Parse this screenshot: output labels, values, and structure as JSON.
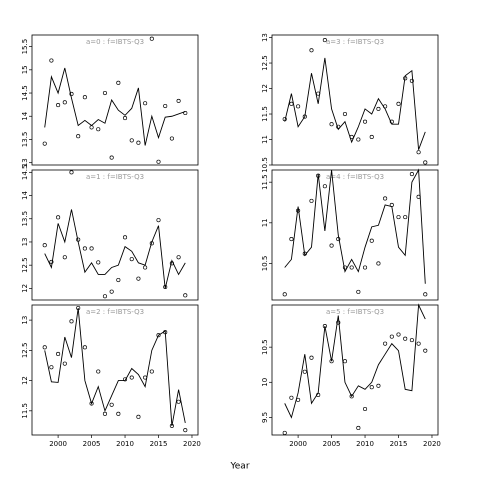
{
  "xlabel": "Year",
  "chart_data": [
    {
      "type": "line",
      "title": "a=0 : f=IBTS-Q3",
      "x": [
        1998,
        1999,
        2000,
        2001,
        2002,
        2003,
        2004,
        2005,
        2006,
        2007,
        2008,
        2009,
        2010,
        2011,
        2012,
        2013,
        2014,
        2015,
        2016,
        2017,
        2018,
        2019
      ],
      "series": [
        {
          "marker": "circle",
          "color": "#000000",
          "values": [
            13.41,
            15.2,
            14.24,
            14.3,
            14.48,
            13.57,
            14.41,
            13.76,
            13.72,
            14.5,
            13.11,
            14.72,
            13.96,
            13.48,
            13.43,
            14.28,
            15.67,
            13.02,
            14.22,
            13.52,
            14.33,
            14.07
          ]
        },
        {
          "marker": "line",
          "color": "#000000",
          "values": [
            13.76,
            14.85,
            14.5,
            15.04,
            14.39,
            13.8,
            13.91,
            13.8,
            13.93,
            13.85,
            14.35,
            14.13,
            14.02,
            14.17,
            14.61,
            13.37,
            14.0,
            13.54,
            13.98,
            14.0,
            14.05,
            14.1
          ]
        }
      ],
      "xlim": [
        1996.1,
        2020.9
      ],
      "ylim": [
        12.95,
        15.75
      ],
      "yticks": [
        13.0,
        13.5,
        14.0,
        14.5,
        15.0,
        15.5
      ]
    },
    {
      "type": "line",
      "title": "a=3 : f=IBTS-Q3",
      "x": [
        1998,
        1999,
        2000,
        2001,
        2002,
        2003,
        2004,
        2005,
        2006,
        2007,
        2008,
        2009,
        2010,
        2011,
        2012,
        2013,
        2014,
        2015,
        2016,
        2017,
        2018,
        2019
      ],
      "series": [
        {
          "marker": "circle",
          "color": "#000000",
          "values": [
            11.4,
            11.7,
            11.65,
            11.45,
            12.75,
            11.9,
            12.95,
            11.3,
            11.25,
            11.5,
            11.05,
            11.0,
            11.35,
            11.05,
            11.6,
            11.65,
            11.35,
            11.7,
            12.2,
            12.15,
            10.75,
            10.55
          ]
        },
        {
          "marker": "line",
          "color": "#000000",
          "values": [
            11.35,
            11.9,
            11.25,
            11.45,
            12.3,
            11.7,
            12.6,
            11.6,
            11.2,
            11.35,
            10.95,
            11.25,
            11.6,
            11.5,
            11.8,
            11.6,
            11.3,
            11.3,
            12.25,
            12.35,
            10.8,
            11.15
          ]
        }
      ],
      "xlim": [
        1996.1,
        2020.9
      ],
      "ylim": [
        10.5,
        13.05
      ],
      "yticks": [
        10.5,
        11.0,
        11.5,
        12.0,
        12.5,
        13.0
      ]
    },
    {
      "type": "line",
      "title": "a=1 : f=IBTS-Q3",
      "x": [
        1998,
        1999,
        2000,
        2001,
        2002,
        2003,
        2004,
        2005,
        2006,
        2007,
        2008,
        2009,
        2010,
        2011,
        2012,
        2013,
        2014,
        2015,
        2016,
        2017,
        2018,
        2019
      ],
      "series": [
        {
          "marker": "circle",
          "color": "#000000",
          "values": [
            12.93,
            12.57,
            13.53,
            12.67,
            14.5,
            13.05,
            12.86,
            12.86,
            12.56,
            11.83,
            11.93,
            12.18,
            13.1,
            12.63,
            12.21,
            12.45,
            12.97,
            13.47,
            12.03,
            12.54,
            12.67,
            11.85
          ]
        },
        {
          "marker": "line",
          "color": "#000000",
          "values": [
            12.75,
            12.45,
            13.4,
            13.0,
            13.7,
            13.0,
            12.35,
            12.55,
            12.3,
            12.3,
            12.45,
            12.5,
            12.9,
            12.8,
            12.55,
            12.5,
            13.0,
            13.35,
            12.0,
            12.6,
            12.3,
            12.55
          ]
        }
      ],
      "xlim": [
        1996.1,
        2020.9
      ],
      "ylim": [
        11.75,
        14.55
      ],
      "yticks": [
        12.0,
        12.5,
        13.0,
        13.5,
        14.0,
        14.5
      ]
    },
    {
      "type": "line",
      "title": "a=4 : f=IBTS-Q3",
      "x": [
        1998,
        1999,
        2000,
        2001,
        2002,
        2003,
        2004,
        2005,
        2006,
        2007,
        2008,
        2009,
        2010,
        2011,
        2012,
        2013,
        2014,
        2015,
        2016,
        2017,
        2018,
        2019
      ],
      "series": [
        {
          "marker": "circle",
          "color": "#000000",
          "values": [
            10.12,
            10.8,
            11.15,
            10.62,
            11.27,
            11.58,
            11.45,
            10.72,
            10.8,
            10.45,
            10.45,
            10.15,
            10.45,
            10.78,
            10.5,
            11.3,
            11.22,
            11.07,
            11.07,
            11.6,
            11.32,
            10.12
          ]
        },
        {
          "marker": "line",
          "color": "#000000",
          "values": [
            10.45,
            10.55,
            11.2,
            10.6,
            10.7,
            11.6,
            10.9,
            11.65,
            10.85,
            10.4,
            10.55,
            10.4,
            10.7,
            10.95,
            10.97,
            11.22,
            11.2,
            10.7,
            10.6,
            11.5,
            11.65,
            10.25
          ]
        }
      ],
      "xlim": [
        1996.1,
        2020.9
      ],
      "ylim": [
        10.05,
        11.65
      ],
      "yticks": [
        10.5,
        11.0,
        11.5
      ]
    },
    {
      "type": "line",
      "title": "a=2 : f=IBTS-Q3",
      "x": [
        1998,
        1999,
        2000,
        2001,
        2002,
        2003,
        2004,
        2005,
        2006,
        2007,
        2008,
        2009,
        2010,
        2011,
        2012,
        2013,
        2014,
        2015,
        2016,
        2017,
        2018,
        2019
      ],
      "series": [
        {
          "marker": "circle",
          "color": "#000000",
          "values": [
            12.55,
            12.22,
            12.44,
            12.28,
            12.98,
            13.2,
            12.55,
            11.62,
            12.15,
            11.45,
            11.6,
            11.45,
            12.02,
            12.05,
            11.4,
            12.05,
            12.15,
            12.75,
            12.8,
            11.25,
            11.65,
            11.18
          ]
        },
        {
          "marker": "line",
          "color": "#000000",
          "values": [
            12.5,
            11.98,
            11.97,
            12.72,
            12.38,
            13.2,
            12.0,
            11.62,
            11.9,
            11.5,
            11.75,
            12.0,
            12.0,
            12.2,
            12.1,
            11.9,
            12.5,
            12.75,
            12.82,
            11.25,
            11.85,
            11.3
          ]
        }
      ],
      "xlim": [
        1996.1,
        2020.9
      ],
      "ylim": [
        11.1,
        13.25
      ],
      "yticks": [
        11.5,
        12.0,
        12.5,
        13.0
      ],
      "xticks": [
        2000,
        2005,
        2010,
        2015,
        2020
      ]
    },
    {
      "type": "line",
      "title": "a=5 : f=IBTS-Q3",
      "x": [
        1998,
        1999,
        2000,
        2001,
        2002,
        2003,
        2004,
        2005,
        2006,
        2007,
        2008,
        2009,
        2010,
        2011,
        2012,
        2013,
        2014,
        2015,
        2016,
        2017,
        2018,
        2019
      ],
      "series": [
        {
          "marker": "circle",
          "color": "#000000",
          "values": [
            9.28,
            9.78,
            9.75,
            10.15,
            10.35,
            9.82,
            10.8,
            10.3,
            10.85,
            10.3,
            9.8,
            9.35,
            9.62,
            9.93,
            9.95,
            10.55,
            10.65,
            10.68,
            10.62,
            10.6,
            10.55,
            10.45
          ]
        },
        {
          "marker": "line",
          "color": "#000000",
          "values": [
            9.7,
            9.5,
            9.85,
            10.4,
            9.7,
            9.85,
            10.8,
            10.3,
            10.95,
            10.0,
            9.8,
            9.95,
            9.9,
            10.0,
            10.25,
            10.4,
            10.55,
            10.45,
            9.9,
            9.88,
            11.1,
            10.9
          ]
        }
      ],
      "xlim": [
        1996.1,
        2020.9
      ],
      "ylim": [
        9.25,
        11.1
      ],
      "yticks": [
        9.5,
        10.0,
        10.5
      ],
      "xticks": [
        2000,
        2005,
        2010,
        2015,
        2020
      ]
    }
  ]
}
